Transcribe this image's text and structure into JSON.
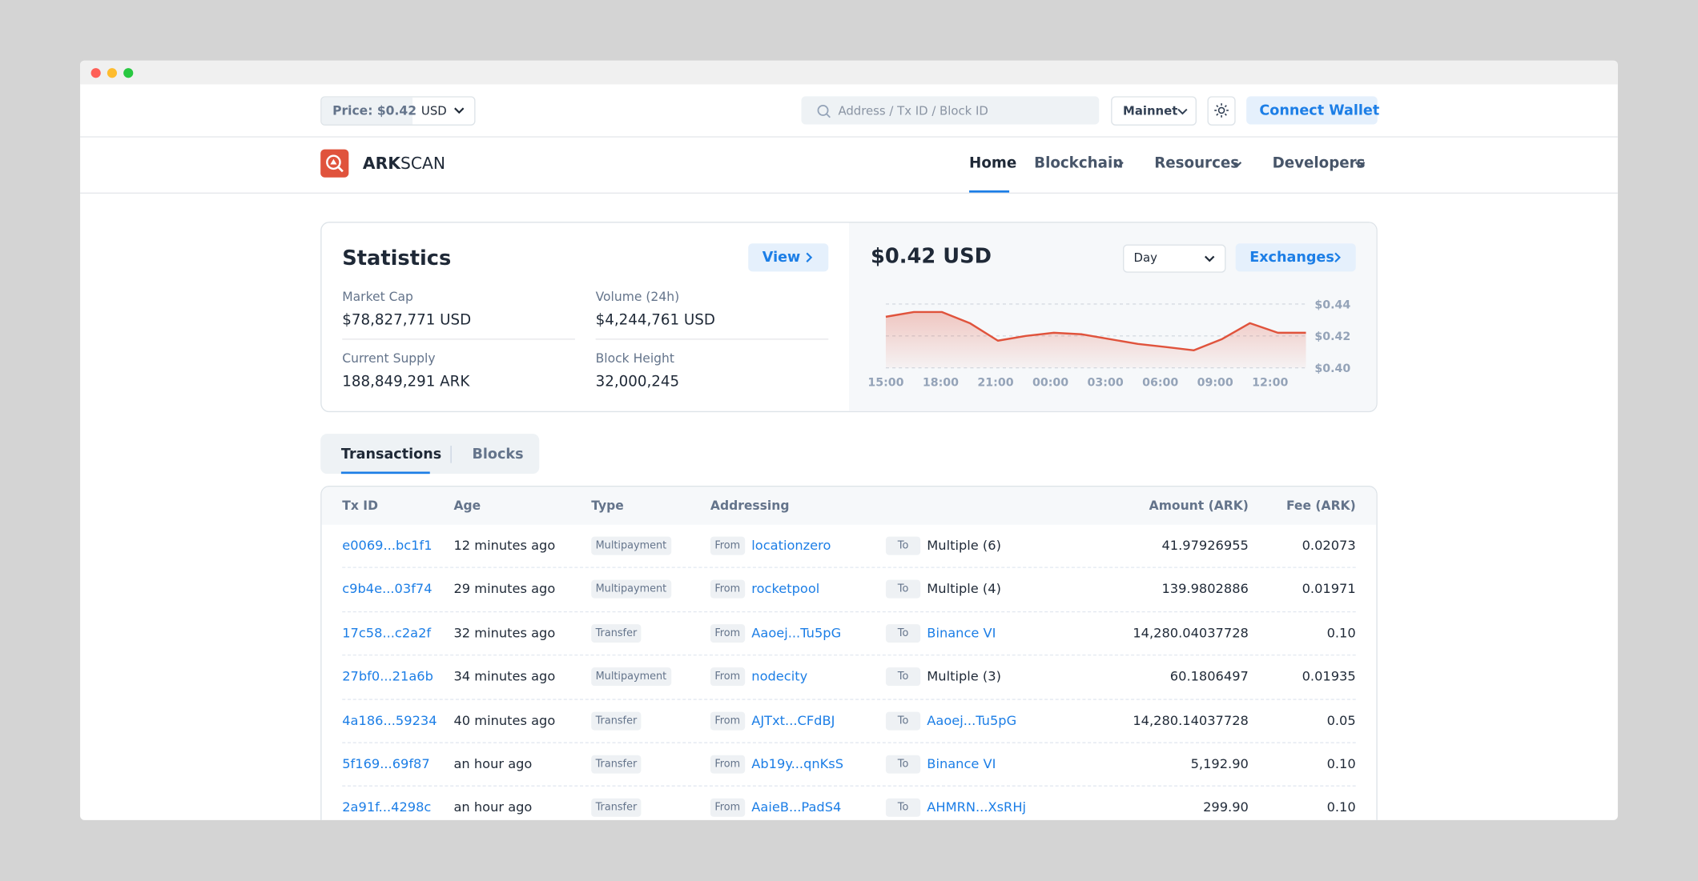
{
  "topbar": {
    "price": "Price: $0.42",
    "currency": "USD",
    "search_placeholder": "Address / Tx ID / Block ID",
    "network": "Mainnet",
    "connect": "Connect Wallet"
  },
  "nav": {
    "brand_bold": "ARK",
    "brand_rest": "SCAN",
    "items": [
      "Home",
      "Blockchain",
      "Resources",
      "Developers"
    ]
  },
  "statistics": {
    "title": "Statistics",
    "view": "View",
    "items": [
      {
        "label": "Market Cap",
        "value": "$78,827,771 USD"
      },
      {
        "label": "Volume (24h)",
        "value": "$4,244,761 USD"
      },
      {
        "label": "Current Supply",
        "value": "188,849,291 ARK"
      },
      {
        "label": "Block Height",
        "value": "32,000,245"
      }
    ]
  },
  "price_panel": {
    "title": "$0.42 USD",
    "period": "Day",
    "exchanges": "Exchanges",
    "chart": {
      "type": "line",
      "x_labels": [
        "15:00",
        "18:00",
        "21:00",
        "00:00",
        "03:00",
        "06:00",
        "09:00",
        "12:00"
      ],
      "values": [
        0.432,
        0.435,
        0.435,
        0.428,
        0.417,
        0.42,
        0.422,
        0.421,
        0.418,
        0.415,
        0.413,
        0.411,
        0.418,
        0.428,
        0.422,
        0.422
      ],
      "color": "#e0533c",
      "ylim": [
        0.4,
        0.44
      ],
      "yticks": [
        {
          "value": 0.44,
          "label": "$0.44"
        },
        {
          "value": 0.42,
          "label": "$0.42"
        },
        {
          "value": 0.4,
          "label": "$0.40"
        }
      ]
    }
  },
  "tabs": [
    "Transactions",
    "Blocks"
  ],
  "table": {
    "headers": [
      "Tx ID",
      "Age",
      "Type",
      "Addressing",
      "Amount (ARK)",
      "Fee (ARK)"
    ],
    "from_label": "From",
    "to_label": "To",
    "rows": [
      {
        "id": "e0069...bc1f1",
        "age": "12 minutes ago",
        "type": "Multipayment",
        "from": "locationzero",
        "to": "Multiple (6)",
        "to_link": false,
        "amount": "41.97926955",
        "fee": "0.02073"
      },
      {
        "id": "c9b4e...03f74",
        "age": "29 minutes ago",
        "type": "Multipayment",
        "from": "rocketpool",
        "to": "Multiple (4)",
        "to_link": false,
        "amount": "139.9802886",
        "fee": "0.01971"
      },
      {
        "id": "17c58...c2a2f",
        "age": "32 minutes ago",
        "type": "Transfer",
        "from": "Aaoej...Tu5pG",
        "to": "Binance VI",
        "to_link": true,
        "amount": "14,280.04037728",
        "fee": "0.10"
      },
      {
        "id": "27bf0...21a6b",
        "age": "34 minutes ago",
        "type": "Multipayment",
        "from": "nodecity",
        "to": "Multiple (3)",
        "to_link": false,
        "amount": "60.1806497",
        "fee": "0.01935"
      },
      {
        "id": "4a186...59234",
        "age": "40 minutes ago",
        "type": "Transfer",
        "from": "AJTxt...CFdBJ",
        "to": "Aaoej...Tu5pG",
        "to_link": true,
        "amount": "14,280.14037728",
        "fee": "0.05"
      },
      {
        "id": "5f169...69f87",
        "age": "an hour ago",
        "type": "Transfer",
        "from": "Ab19y...qnKsS",
        "to": "Binance VI",
        "to_link": true,
        "amount": "5,192.90",
        "fee": "0.10"
      },
      {
        "id": "2a91f...4298c",
        "age": "an hour ago",
        "type": "Transfer",
        "from": "AaieB...PadS4",
        "to": "AHMRN...XsRHj",
        "to_link": true,
        "amount": "299.90",
        "fee": "0.10"
      }
    ]
  }
}
